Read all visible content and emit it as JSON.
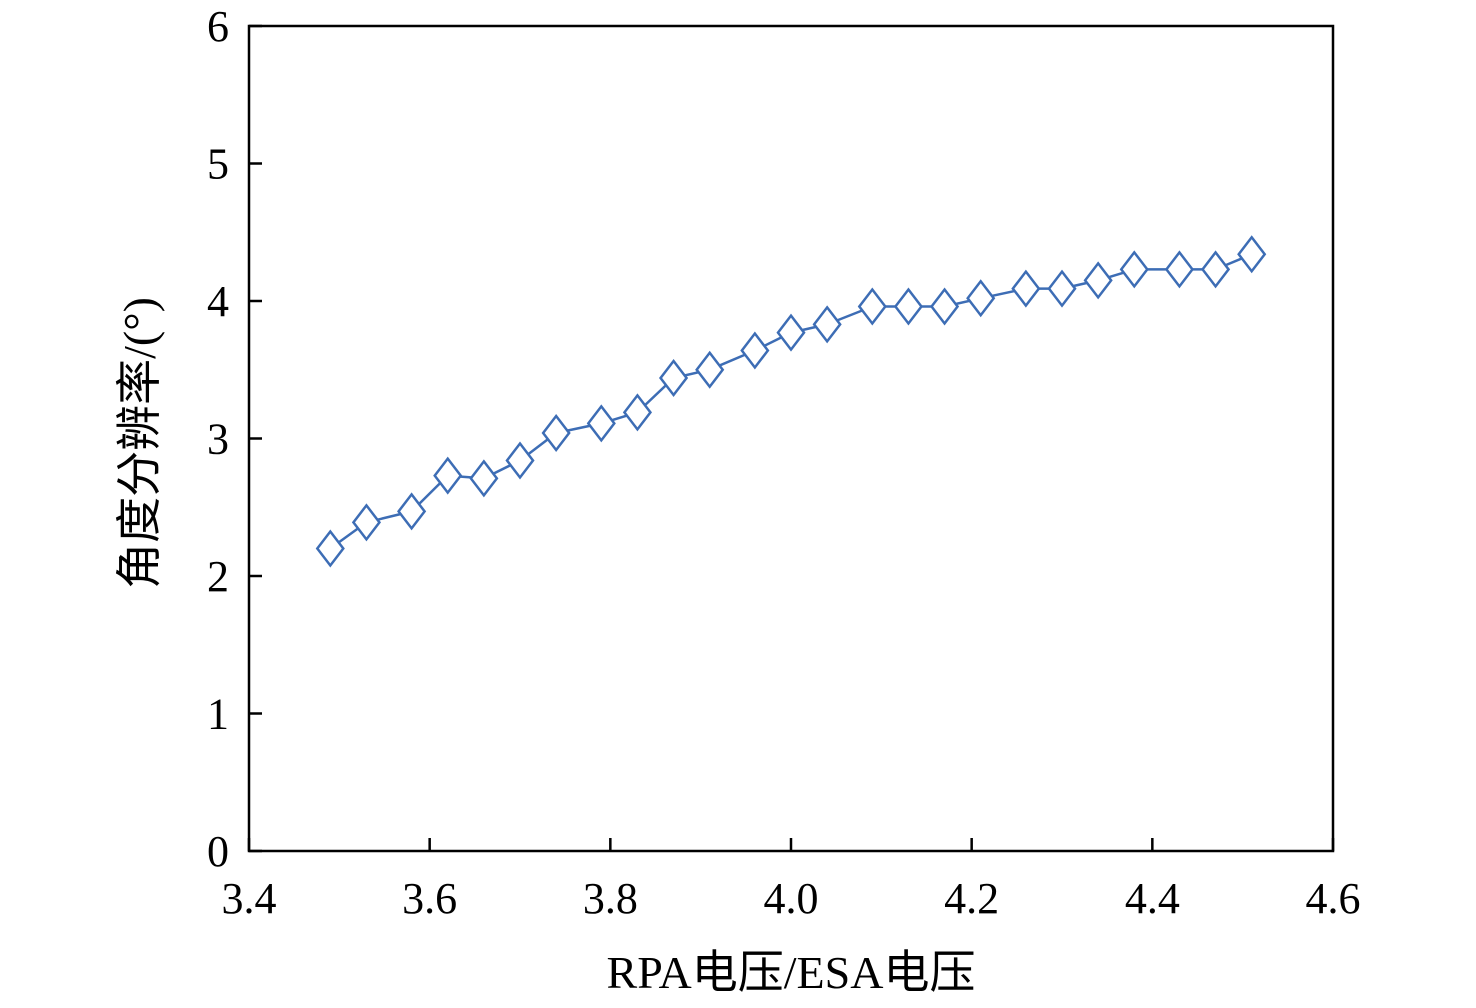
{
  "chart_data": {
    "type": "line",
    "xlabel": "RPA电压/ESA电压",
    "ylabel": "角度分辨率/(°)",
    "xlim": [
      3.4,
      4.6
    ],
    "ylim": [
      0,
      6
    ],
    "xticks": [
      "3.4",
      "3.6",
      "3.8",
      "4.0",
      "4.2",
      "4.4",
      "4.6"
    ],
    "yticks": [
      "0",
      "1",
      "2",
      "3",
      "4",
      "5",
      "6"
    ],
    "grid": false,
    "x": [
      3.49,
      3.53,
      3.58,
      3.62,
      3.66,
      3.7,
      3.74,
      3.79,
      3.83,
      3.87,
      3.91,
      3.96,
      4.0,
      4.04,
      4.09,
      4.13,
      4.17,
      4.21,
      4.26,
      4.3,
      4.34,
      4.38,
      4.43,
      4.47,
      4.51
    ],
    "series": [
      {
        "values": [
          2.2,
          2.39,
          2.47,
          2.73,
          2.71,
          2.84,
          3.04,
          3.11,
          3.19,
          3.44,
          3.5,
          3.64,
          3.77,
          3.83,
          3.96,
          3.96,
          3.96,
          4.02,
          4.09,
          4.09,
          4.15,
          4.23,
          4.23,
          4.23,
          4.34
        ],
        "color": "#3d6db5",
        "marker": "diamond-open"
      }
    ]
  }
}
